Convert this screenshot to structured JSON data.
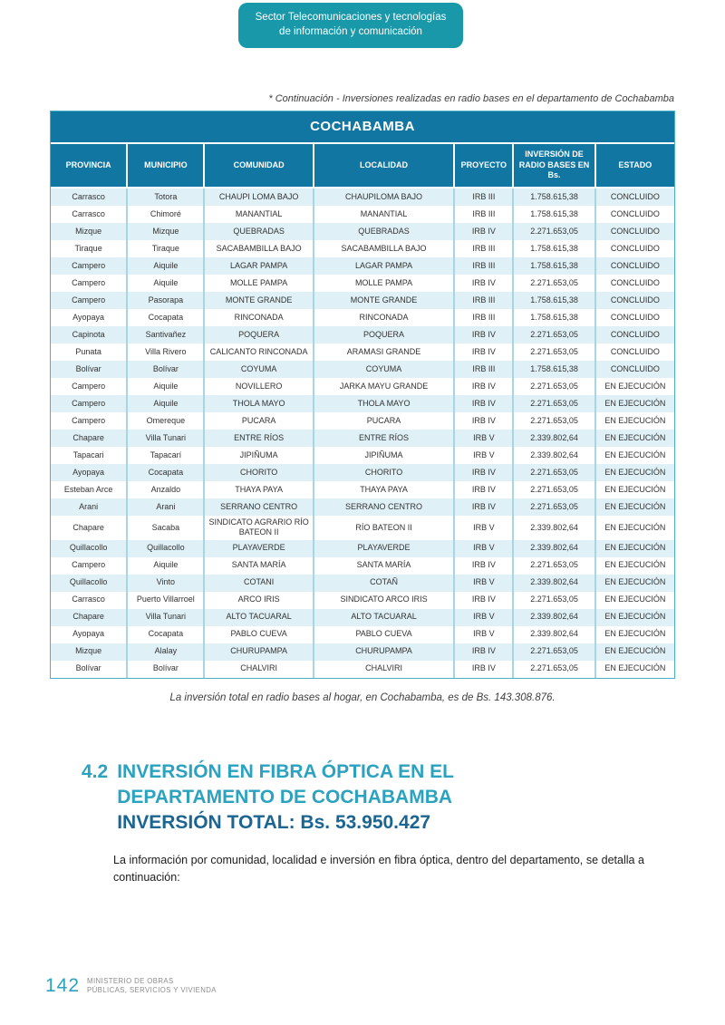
{
  "badge": {
    "line1": "Sector Telecomunicaciones y tecnologías",
    "line2": "de información y comunicación"
  },
  "table_caption": "* Continuación - Inversiones realizadas en radio bases en el departamento de Cochabamba",
  "table": {
    "title": "COCHABAMBA",
    "columns": [
      "PROVINCIA",
      "MUNICIPIO",
      "COMUNIDAD",
      "LOCALIDAD",
      "PROYECTO",
      "INVERSIÓN DE RADIO BASES EN Bs.",
      "ESTADO"
    ],
    "col_widths": [
      "85px",
      "85px",
      "120px",
      "155px",
      "65px",
      "90px",
      "86px"
    ],
    "rows": [
      [
        "Carrasco",
        "Totora",
        "CHAUPI LOMA BAJO",
        "CHAUPILOMA BAJO",
        "IRB III",
        "1.758.615,38",
        "CONCLUIDO"
      ],
      [
        "Carrasco",
        "Chimoré",
        "MANANTIAL",
        "MANANTIAL",
        "IRB III",
        "1.758.615,38",
        "CONCLUIDO"
      ],
      [
        "Mizque",
        "Mizque",
        "QUEBRADAS",
        "QUEBRADAS",
        "IRB IV",
        "2.271.653,05",
        "CONCLUIDO"
      ],
      [
        "Tiraque",
        "Tiraque",
        "SACABAMBILLA BAJO",
        "SACABAMBILLA BAJO",
        "IRB III",
        "1.758.615,38",
        "CONCLUIDO"
      ],
      [
        "Campero",
        "Aiquile",
        "LAGAR PAMPA",
        "LAGAR PAMPA",
        "IRB III",
        "1.758.615,38",
        "CONCLUIDO"
      ],
      [
        "Campero",
        "Aiquile",
        "MOLLE PAMPA",
        "MOLLE PAMPA",
        "IRB IV",
        "2.271.653,05",
        "CONCLUIDO"
      ],
      [
        "Campero",
        "Pasorapa",
        "MONTE GRANDE",
        "MONTE GRANDE",
        "IRB III",
        "1.758.615,38",
        "CONCLUIDO"
      ],
      [
        "Ayopaya",
        "Cocapata",
        "RINCONADA",
        "RINCONADA",
        "IRB III",
        "1.758.615,38",
        "CONCLUIDO"
      ],
      [
        "Capinota",
        "Santivañez",
        "POQUERA",
        "POQUERA",
        "IRB IV",
        "2.271.653,05",
        "CONCLUIDO"
      ],
      [
        "Punata",
        "Villa Rivero",
        "CALICANTO RINCONADA",
        "ARAMASI GRANDE",
        "IRB IV",
        "2.271.653,05",
        "CONCLUIDO"
      ],
      [
        "Bolívar",
        "Bolívar",
        "COYUMA",
        "COYUMA",
        "IRB III",
        "1.758.615,38",
        "CONCLUIDO"
      ],
      [
        "Campero",
        "Aiquile",
        "NOVILLERO",
        "JARKA MAYU GRANDE",
        "IRB IV",
        "2.271.653,05",
        "EN EJECUCIÓN"
      ],
      [
        "Campero",
        "Aiquile",
        "THOLA MAYO",
        "THOLA MAYO",
        "IRB IV",
        "2.271.653,05",
        "EN EJECUCIÓN"
      ],
      [
        "Campero",
        "Omereque",
        "PUCARA",
        "PUCARA",
        "IRB IV",
        "2.271.653,05",
        "EN EJECUCIÓN"
      ],
      [
        "Chapare",
        "Villa Tunari",
        "ENTRE RÍOS",
        "ENTRE RÍOS",
        "IRB V",
        "2.339.802,64",
        "EN EJECUCIÓN"
      ],
      [
        "Tapacari",
        "Tapacarí",
        "JIPIÑUMA",
        "JIPIÑUMA",
        "IRB V",
        "2.339.802,64",
        "EN EJECUCIÓN"
      ],
      [
        "Ayopaya",
        "Cocapata",
        "CHORITO",
        "CHORITO",
        "IRB IV",
        "2.271.653,05",
        "EN EJECUCIÓN"
      ],
      [
        "Esteban Arce",
        "Anzaldo",
        "THAYA PAYA",
        "THAYA PAYA",
        "IRB IV",
        "2.271.653,05",
        "EN EJECUCIÓN"
      ],
      [
        "Arani",
        "Arani",
        "SERRANO CENTRO",
        "SERRANO CENTRO",
        "IRB IV",
        "2.271.653,05",
        "EN EJECUCIÓN"
      ],
      [
        "Chapare",
        "Sacaba",
        "SINDICATO AGRARIO RÍO BATEON II",
        "RÍO BATEON II",
        "IRB V",
        "2.339.802,64",
        "EN EJECUCIÓN"
      ],
      [
        "Quillacollo",
        "Quillacollo",
        "PLAYAVERDE",
        "PLAYAVERDE",
        "IRB V",
        "2.339.802,64",
        "EN EJECUCIÓN"
      ],
      [
        "Campero",
        "Aiquile",
        "SANTA MARÍA",
        "SANTA MARÍA",
        "IRB IV",
        "2.271.653,05",
        "EN EJECUCIÓN"
      ],
      [
        "Quillacollo",
        "Vinto",
        "COTANI",
        "COTAÑ",
        "IRB V",
        "2.339.802,64",
        "EN EJECUCIÓN"
      ],
      [
        "Carrasco",
        "Puerto Villarroel",
        "ARCO IRIS",
        "SINDICATO ARCO IRIS",
        "IRB IV",
        "2.271.653,05",
        "EN EJECUCIÓN"
      ],
      [
        "Chapare",
        "Villa Tunari",
        "ALTO TACUARAL",
        "ALTO TACUARAL",
        "IRB V",
        "2.339.802,64",
        "EN EJECUCIÓN"
      ],
      [
        "Ayopaya",
        "Cocapata",
        "PABLO CUEVA",
        "PABLO CUEVA",
        "IRB V",
        "2.339.802,64",
        "EN EJECUCIÓN"
      ],
      [
        "Mizque",
        "Alalay",
        "CHURUPAMPA",
        "CHURUPAMPA",
        "IRB IV",
        "2.271.653,05",
        "EN EJECUCIÓN"
      ],
      [
        "Bolívar",
        "Bolívar",
        "CHALVIRI",
        "CHALVIRI",
        "IRB IV",
        "2.271.653,05",
        "EN EJECUCIÓN"
      ]
    ]
  },
  "table_footnote": "La inversión total en radio bases al hogar, en Cochabamba, es de Bs. 143.308.876.",
  "section": {
    "number": "4.2",
    "title_line1": "INVERSIÓN EN FIBRA ÓPTICA EN EL",
    "title_line2": "DEPARTAMENTO DE COCHABAMBA",
    "title_line3": "INVERSIÓN TOTAL: Bs. 53.950.427"
  },
  "body_paragraph": "La información por comunidad, localidad e inversión en fibra óptica, dentro del departamento, se detalla a continuación:",
  "footer": {
    "page_number": "142",
    "ministry_line1": "MINISTERIO DE OBRAS",
    "ministry_line2": "PÚBLICAS, SERVICIOS Y VIVIENDA"
  },
  "colors": {
    "badge_teal": "#1898a9",
    "table_header_blue": "#1276a3",
    "row_alt_blue": "#dff0f6",
    "table_border_teal": "#49afc5",
    "heading_teal": "#2aa2c0",
    "heading_dark_blue": "#1a6591",
    "footer_gray": "#8c8c8c"
  }
}
